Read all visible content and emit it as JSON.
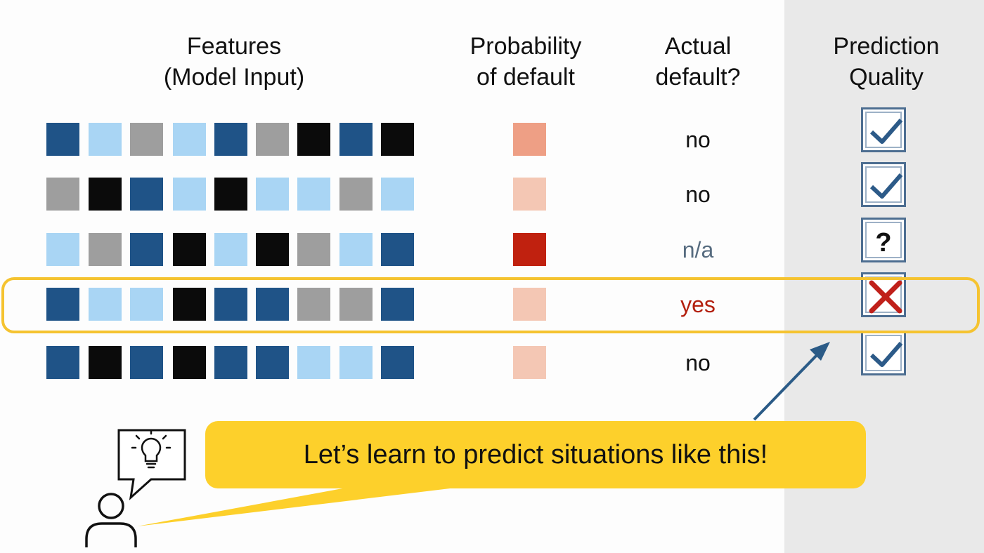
{
  "headers": {
    "features": [
      "Features",
      "(Model Input)"
    ],
    "probability": [
      "Probability",
      "of default"
    ],
    "actual": [
      "Actual",
      "default?"
    ],
    "quality": [
      "Prediction",
      "Quality"
    ]
  },
  "colors": {
    "dark_blue": "#1f5387",
    "light_blue": "#a9d5f4",
    "gray": "#9e9e9e",
    "black": "#0b0b0b",
    "prob_light": "#f4c7b4",
    "prob_medium": "#ee9f85",
    "prob_high": "#c0210f",
    "text_default": "#111111",
    "text_na": "#566b7f",
    "text_yes": "#b3200f",
    "check_blue": "#2c5a88",
    "cross_red": "#c0201a",
    "highlight": "#f5c330",
    "bubble": "#fdd02b"
  },
  "feature_colors": [
    "dark_blue",
    "light_blue",
    "gray",
    "black"
  ],
  "rows": [
    {
      "features": [
        0,
        1,
        2,
        1,
        0,
        2,
        3,
        0,
        3
      ],
      "probability": "prob_medium",
      "actual": "no",
      "actual_color": "text_default",
      "quality": "check"
    },
    {
      "features": [
        2,
        3,
        0,
        1,
        3,
        1,
        1,
        2,
        1
      ],
      "probability": "prob_light",
      "actual": "no",
      "actual_color": "text_default",
      "quality": "check"
    },
    {
      "features": [
        1,
        2,
        0,
        3,
        1,
        3,
        2,
        1,
        0
      ],
      "probability": "prob_high",
      "actual": "n/a",
      "actual_color": "text_na",
      "quality": "question"
    },
    {
      "features": [
        0,
        1,
        1,
        3,
        0,
        0,
        2,
        2,
        0
      ],
      "probability": "prob_light",
      "actual": "yes",
      "actual_color": "text_yes",
      "quality": "cross"
    },
    {
      "features": [
        0,
        3,
        0,
        3,
        0,
        0,
        1,
        1,
        0
      ],
      "probability": "prob_light",
      "actual": "no",
      "actual_color": "text_default",
      "quality": "check"
    }
  ],
  "bubble_text": "Let’s learn to predict situations like this!",
  "icons": {
    "person": "person-icon",
    "speech": "speech-bubble-icon",
    "bulb": "lightbulb-icon",
    "arrow": "arrow-icon",
    "check": "checkmark-icon",
    "question": "question-icon",
    "cross": "cross-icon"
  }
}
